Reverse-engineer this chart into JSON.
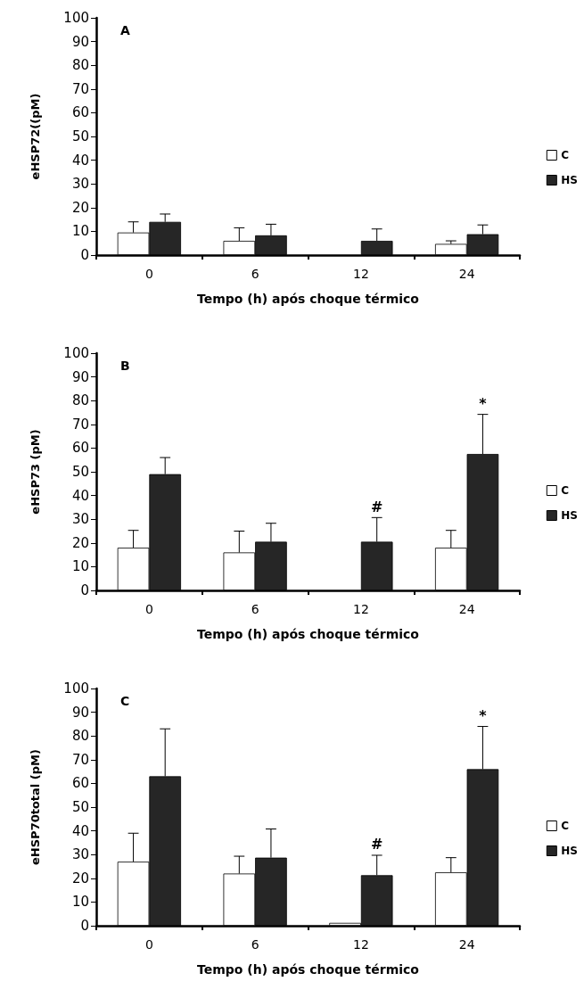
{
  "chart_data": [
    {
      "type": "bar",
      "title": "A",
      "xlabel": "Tempo (h) após choque térmico",
      "ylabel": "eHSP72((pM)",
      "categories": [
        "0",
        "6",
        "12",
        "24"
      ],
      "series": [
        {
          "name": "C",
          "color": "#ffffff",
          "values": [
            9.5,
            6,
            null,
            4.7
          ],
          "errors": [
            [
              9.5,
              14
            ],
            [
              6,
              11.5
            ],
            null,
            [
              4.7,
              6
            ]
          ]
        },
        {
          "name": "HS",
          "color": "#262626",
          "values": [
            14,
            8.3,
            6,
            8.8
          ],
          "errors": [
            [
              14,
              17.3
            ],
            [
              8.3,
              13
            ],
            [
              6,
              11
            ],
            [
              8.8,
              12.7
            ]
          ]
        }
      ],
      "ylim": [
        0,
        100
      ],
      "yticks": [
        0,
        10,
        20,
        30,
        40,
        50,
        60,
        70,
        80,
        90,
        100
      ],
      "grid": false,
      "legend": "right"
    },
    {
      "type": "bar",
      "title": "B",
      "xlabel": "Tempo (h) após choque térmico",
      "ylabel": "eHSP73 (pM)",
      "categories": [
        "0",
        "6",
        "12",
        "24"
      ],
      "series": [
        {
          "name": "C",
          "color": "#ffffff",
          "values": [
            18,
            16,
            null,
            18
          ],
          "errors": [
            [
              18,
              25.3
            ],
            [
              16,
              25
            ],
            null,
            [
              18,
              25.3
            ]
          ]
        },
        {
          "name": "HS",
          "color": "#262626",
          "values": [
            49,
            20.5,
            20.5,
            57.5
          ],
          "errors": [
            [
              49,
              56
            ],
            [
              20.5,
              28.3
            ],
            [
              20.5,
              30.7
            ],
            [
              57.5,
              74.2
            ]
          ],
          "value_labels": [
            null,
            null,
            "#",
            "*"
          ]
        }
      ],
      "ylim": [
        0,
        100
      ],
      "yticks": [
        0,
        10,
        20,
        30,
        40,
        50,
        60,
        70,
        80,
        90,
        100
      ],
      "grid": false,
      "legend": "right"
    },
    {
      "type": "bar",
      "title": "C",
      "xlabel": "Tempo (h) após choque térmico",
      "ylabel": "eHSP70total (pM)",
      "categories": [
        "0",
        "6",
        "12",
        "24"
      ],
      "series": [
        {
          "name": "C",
          "color": "#ffffff",
          "values": [
            27,
            22,
            1.2,
            22.5
          ],
          "errors": [
            [
              27,
              39
            ],
            [
              22,
              29.3
            ],
            null,
            [
              22.5,
              28.7
            ]
          ]
        },
        {
          "name": "HS",
          "color": "#262626",
          "values": [
            63,
            28.7,
            21.3,
            66
          ],
          "errors": [
            [
              63,
              83
            ],
            [
              28.7,
              40.8
            ],
            [
              21.3,
              29.7
            ],
            [
              66,
              84
            ]
          ],
          "value_labels": [
            null,
            null,
            "#",
            "*"
          ]
        }
      ],
      "ylim": [
        0,
        100
      ],
      "yticks": [
        0,
        10,
        20,
        30,
        40,
        50,
        60,
        70,
        80,
        90,
        100
      ],
      "grid": false,
      "legend": "right"
    }
  ]
}
